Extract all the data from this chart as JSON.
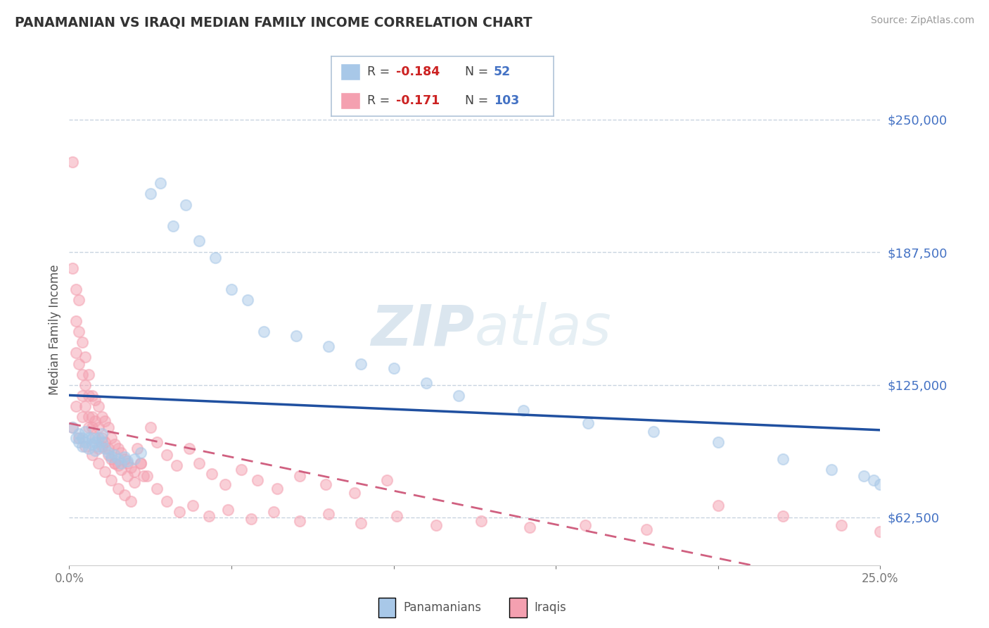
{
  "title": "PANAMANIAN VS IRAQI MEDIAN FAMILY INCOME CORRELATION CHART",
  "source": "Source: ZipAtlas.com",
  "ylabel": "Median Family Income",
  "xlim": [
    0.0,
    0.25
  ],
  "ylim": [
    40000,
    262000
  ],
  "yticks": [
    62500,
    125000,
    187500,
    250000
  ],
  "ytick_labels": [
    "$62,500",
    "$125,000",
    "$187,500",
    "$250,000"
  ],
  "xticks": [
    0.0,
    0.05,
    0.1,
    0.15,
    0.2,
    0.25
  ],
  "xtick_labels": [
    "0.0%",
    "",
    "",
    "",
    "",
    "25.0%"
  ],
  "blue_color": "#a8c8e8",
  "pink_color": "#f4a0b0",
  "trend_blue": "#2050a0",
  "trend_pink": "#d06080",
  "legend_R_blue": "-0.184",
  "legend_N_blue": "52",
  "legend_R_pink": "-0.171",
  "legend_N_pink": "103",
  "watermark": "ZIPatlas",
  "background_color": "#ffffff",
  "grid_color": "#c8d4e0",
  "pan_x": [
    0.001,
    0.002,
    0.003,
    0.003,
    0.004,
    0.004,
    0.005,
    0.005,
    0.006,
    0.006,
    0.007,
    0.007,
    0.008,
    0.008,
    0.009,
    0.009,
    0.01,
    0.01,
    0.011,
    0.012,
    0.013,
    0.014,
    0.015,
    0.016,
    0.017,
    0.018,
    0.02,
    0.022,
    0.025,
    0.028,
    0.032,
    0.036,
    0.04,
    0.045,
    0.05,
    0.055,
    0.06,
    0.07,
    0.08,
    0.09,
    0.1,
    0.11,
    0.12,
    0.14,
    0.16,
    0.18,
    0.2,
    0.22,
    0.235,
    0.245,
    0.25,
    0.248
  ],
  "pan_y": [
    105000,
    100000,
    98000,
    102000,
    96000,
    100000,
    98000,
    103000,
    95000,
    100000,
    97000,
    100000,
    94000,
    98000,
    96000,
    100000,
    98000,
    102000,
    95000,
    93000,
    91000,
    92000,
    90000,
    88000,
    91000,
    89000,
    90000,
    93000,
    215000,
    220000,
    200000,
    210000,
    193000,
    185000,
    170000,
    165000,
    150000,
    148000,
    143000,
    135000,
    133000,
    126000,
    120000,
    113000,
    107000,
    103000,
    98000,
    90000,
    85000,
    82000,
    78000,
    80000
  ],
  "irq_x": [
    0.001,
    0.001,
    0.002,
    0.002,
    0.002,
    0.003,
    0.003,
    0.003,
    0.004,
    0.004,
    0.004,
    0.005,
    0.005,
    0.005,
    0.006,
    0.006,
    0.006,
    0.007,
    0.007,
    0.007,
    0.008,
    0.008,
    0.009,
    0.009,
    0.009,
    0.01,
    0.01,
    0.011,
    0.011,
    0.012,
    0.012,
    0.013,
    0.013,
    0.014,
    0.014,
    0.015,
    0.015,
    0.016,
    0.017,
    0.018,
    0.019,
    0.02,
    0.021,
    0.022,
    0.023,
    0.025,
    0.027,
    0.03,
    0.033,
    0.037,
    0.04,
    0.044,
    0.048,
    0.053,
    0.058,
    0.064,
    0.071,
    0.079,
    0.088,
    0.098,
    0.001,
    0.002,
    0.003,
    0.004,
    0.005,
    0.006,
    0.007,
    0.008,
    0.009,
    0.01,
    0.011,
    0.012,
    0.013,
    0.014,
    0.015,
    0.016,
    0.017,
    0.018,
    0.019,
    0.02,
    0.022,
    0.024,
    0.027,
    0.03,
    0.034,
    0.038,
    0.043,
    0.049,
    0.056,
    0.063,
    0.071,
    0.08,
    0.09,
    0.101,
    0.113,
    0.127,
    0.142,
    0.159,
    0.178,
    0.2,
    0.22,
    0.238,
    0.25
  ],
  "irq_y": [
    230000,
    180000,
    170000,
    155000,
    140000,
    165000,
    150000,
    135000,
    145000,
    130000,
    120000,
    138000,
    125000,
    115000,
    130000,
    120000,
    110000,
    120000,
    110000,
    105000,
    118000,
    108000,
    115000,
    105000,
    95000,
    110000,
    100000,
    108000,
    98000,
    105000,
    95000,
    100000,
    90000,
    97000,
    88000,
    95000,
    87000,
    93000,
    90000,
    88000,
    86000,
    84000,
    95000,
    88000,
    82000,
    105000,
    98000,
    92000,
    87000,
    95000,
    88000,
    83000,
    78000,
    85000,
    80000,
    76000,
    82000,
    78000,
    74000,
    80000,
    105000,
    115000,
    100000,
    110000,
    96000,
    105000,
    92000,
    100000,
    88000,
    96000,
    84000,
    92000,
    80000,
    88000,
    76000,
    85000,
    73000,
    82000,
    70000,
    79000,
    88000,
    82000,
    76000,
    70000,
    65000,
    68000,
    63000,
    66000,
    62000,
    65000,
    61000,
    64000,
    60000,
    63000,
    59000,
    61000,
    58000,
    59000,
    57000,
    68000,
    63000,
    59000,
    56000
  ]
}
